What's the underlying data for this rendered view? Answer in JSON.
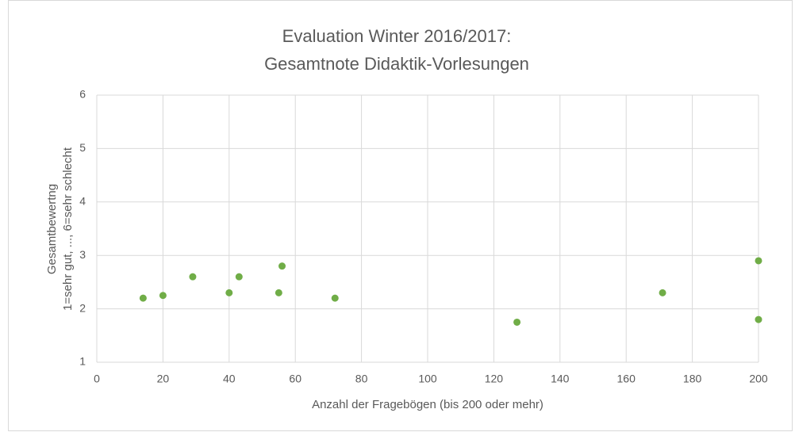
{
  "chart_data": {
    "type": "scatter",
    "title": [
      "Evaluation Winter 2016/2017:",
      "Gesamtnote Didaktik-Vorlesungen"
    ],
    "x_label": "Anzahl der Fragebögen (bis 200 oder mehr)",
    "y_label": [
      "Gesamtbewertng",
      "1=sehr gut, ..., 6=sehr schlecht"
    ],
    "x": [
      14,
      20,
      29,
      40,
      43,
      55,
      56,
      72,
      127,
      171,
      200,
      200
    ],
    "values": [
      2.2,
      2.25,
      2.6,
      2.3,
      2.6,
      2.3,
      2.8,
      2.2,
      1.75,
      2.3,
      2.9,
      1.8
    ],
    "color": "#70ad47",
    "xlim": [
      0,
      200
    ],
    "xticks": [
      0,
      20,
      40,
      60,
      80,
      100,
      120,
      140,
      160,
      180,
      200
    ],
    "ylim": [
      1,
      6
    ],
    "yticks": [
      1,
      2,
      3,
      4,
      5,
      6
    ],
    "grid": true
  }
}
